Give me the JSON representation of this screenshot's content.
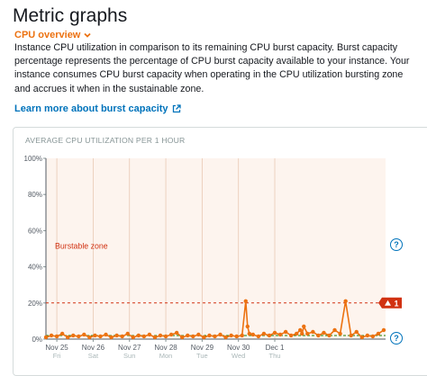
{
  "page": {
    "title": "Metric graphs",
    "section_label": "CPU overview",
    "description": "Instance CPU utilization in comparison to its remaining CPU burst capacity. Burst capacity percentage represents the percentage of CPU burst capacity available to your instance. Your instance consumes CPU burst capacity when operating in the CPU utilization bursting zone and accrues it when in the sustainable zone.",
    "learn_more_label": "Learn more about burst capacity",
    "help_glyph": "?"
  },
  "colors": {
    "accent": "#ec7211",
    "link": "#0073bb",
    "series": "#ec7211",
    "burstable_zone_bg": "#fdf4ee",
    "threshold": "#d13212",
    "baseline": "#1d8102",
    "badge": "#d13212"
  },
  "chart_data": {
    "type": "line",
    "title": "AVERAGE CPU UTILIZATION PER 1 HOUR",
    "ylim": [
      0,
      100
    ],
    "yticks": [
      "100%",
      "80%",
      "60%",
      "40%",
      "20%",
      "0%"
    ],
    "ytick_values": [
      100,
      80,
      60,
      40,
      20,
      0
    ],
    "xlim": [
      0,
      9.35
    ],
    "xticks": [
      {
        "date": "Nov 25",
        "day": "Fri",
        "x": 0.3
      },
      {
        "date": "Nov 26",
        "day": "Sat",
        "x": 1.3
      },
      {
        "date": "Nov 27",
        "day": "Sun",
        "x": 2.3
      },
      {
        "date": "Nov 28",
        "day": "Mon",
        "x": 3.3
      },
      {
        "date": "Nov 29",
        "day": "Tue",
        "x": 4.3
      },
      {
        "date": "Nov 30",
        "day": "Wed",
        "x": 5.3
      },
      {
        "date": "Dec 1",
        "day": "Thu",
        "x": 6.3
      }
    ],
    "zone_label": "Burstable zone",
    "threshold_value": 20,
    "threshold_badge": "1",
    "baseline_value": 2,
    "series": [
      {
        "x": [
          0,
          0.15,
          0.3,
          0.45,
          0.6,
          0.75,
          0.9,
          1.05,
          1.2,
          1.35,
          1.5,
          1.65,
          1.8,
          1.95,
          2.1,
          2.25,
          2.4,
          2.55,
          2.7,
          2.85,
          3.0,
          3.15,
          3.3,
          3.45,
          3.6,
          3.75,
          3.9,
          4.05,
          4.2,
          4.35,
          4.5,
          4.65,
          4.8,
          4.95,
          5.1,
          5.25,
          5.4,
          5.5,
          5.55,
          5.6,
          5.7,
          5.85,
          6.0,
          6.15,
          6.3,
          6.45,
          6.6,
          6.75,
          6.9,
          7.0,
          7.05,
          7.1,
          7.2,
          7.35,
          7.5,
          7.65,
          7.8,
          7.95,
          8.1,
          8.25,
          8.4,
          8.55,
          8.7,
          8.85,
          9.0,
          9.15,
          9.3
        ],
        "y": [
          1,
          2,
          1.5,
          3,
          1,
          2,
          1.5,
          2.5,
          1,
          2,
          1.5,
          2.5,
          1,
          2,
          1.5,
          3,
          1,
          2,
          1.5,
          2.5,
          1,
          2,
          1.5,
          2.5,
          3.5,
          1,
          2,
          1.5,
          2.5,
          1,
          2,
          1.5,
          2.5,
          1,
          2,
          1.5,
          2,
          21,
          7,
          3,
          2.5,
          1.5,
          3,
          2,
          3.5,
          2.5,
          4,
          2,
          3,
          5,
          3,
          7,
          3,
          4,
          2,
          3.5,
          2,
          5,
          3,
          21,
          2,
          4,
          1,
          2,
          1.5,
          3,
          5
        ]
      }
    ]
  }
}
